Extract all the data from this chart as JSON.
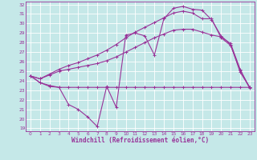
{
  "title": "",
  "xlabel": "Windchill (Refroidissement éolien,°C)",
  "bg_color": "#c5e8e8",
  "line_color": "#993399",
  "grid_color": "#ffffff",
  "xlim_min": -0.5,
  "xlim_max": 23.5,
  "ylim_min": 18.7,
  "ylim_max": 32.3,
  "xticks": [
    0,
    1,
    2,
    3,
    4,
    5,
    6,
    7,
    8,
    9,
    10,
    11,
    12,
    13,
    14,
    15,
    16,
    17,
    18,
    19,
    20,
    21,
    22,
    23
  ],
  "yticks": [
    19,
    20,
    21,
    22,
    23,
    24,
    25,
    26,
    27,
    28,
    29,
    30,
    31,
    32
  ],
  "line1_x": [
    0,
    1,
    2,
    3,
    4,
    5,
    6,
    7,
    8,
    9,
    10,
    11,
    12,
    13,
    14,
    15,
    16,
    17,
    18,
    19,
    20,
    21,
    22,
    23
  ],
  "line1_y": [
    24.5,
    23.8,
    23.5,
    23.3,
    23.3,
    23.3,
    23.3,
    23.3,
    23.3,
    23.3,
    23.3,
    23.3,
    23.3,
    23.3,
    23.3,
    23.3,
    23.3,
    23.3,
    23.3,
    23.3,
    23.3,
    23.3,
    23.3,
    23.3
  ],
  "line2_x": [
    0,
    1,
    2,
    3,
    4,
    5,
    6,
    7,
    8,
    9,
    10,
    11,
    12,
    13,
    14,
    15,
    16,
    17,
    18,
    19,
    20,
    21,
    22,
    23
  ],
  "line2_y": [
    24.5,
    23.8,
    23.4,
    23.3,
    21.5,
    21.0,
    20.2,
    19.2,
    23.4,
    21.2,
    28.8,
    29.0,
    28.7,
    26.7,
    30.5,
    31.6,
    31.8,
    31.5,
    31.4,
    30.4,
    28.7,
    27.8,
    24.9,
    23.3
  ],
  "line3_x": [
    0,
    1,
    2,
    3,
    4,
    5,
    6,
    7,
    8,
    9,
    10,
    11,
    12,
    13,
    14,
    15,
    16,
    17,
    18,
    19,
    20,
    21,
    22,
    23
  ],
  "line3_y": [
    24.5,
    24.2,
    24.6,
    25.0,
    25.2,
    25.4,
    25.6,
    25.8,
    26.1,
    26.5,
    27.0,
    27.5,
    28.0,
    28.5,
    28.9,
    29.3,
    29.4,
    29.4,
    29.1,
    28.8,
    28.6,
    27.9,
    25.2,
    23.2
  ],
  "line4_x": [
    0,
    1,
    2,
    3,
    4,
    5,
    6,
    7,
    8,
    9,
    10,
    11,
    12,
    13,
    14,
    15,
    16,
    17,
    18,
    19,
    20,
    21,
    22,
    23
  ],
  "line4_y": [
    24.5,
    24.2,
    24.7,
    25.2,
    25.6,
    25.9,
    26.3,
    26.7,
    27.2,
    27.8,
    28.5,
    29.1,
    29.6,
    30.1,
    30.6,
    31.1,
    31.3,
    31.1,
    30.5,
    30.5,
    28.5,
    27.7,
    25.1,
    23.3
  ],
  "marker_size": 2.5,
  "line_width": 0.8,
  "tick_fontsize": 4.2,
  "xlabel_fontsize": 5.5
}
